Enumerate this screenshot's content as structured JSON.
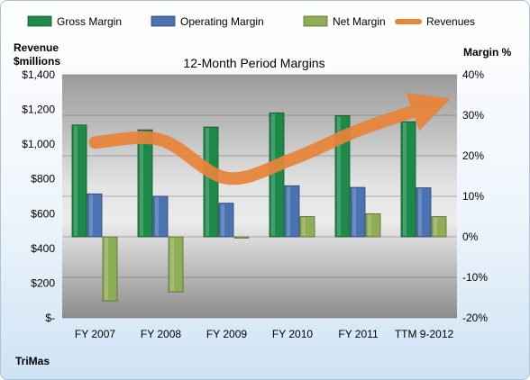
{
  "company": "TriMas",
  "chart_data": {
    "type": "bar",
    "title": "12-Month Period Margins",
    "ylabel_left": [
      "Revenue",
      "$millions"
    ],
    "ylabel_right": "Margin %",
    "categories": [
      "FY 2007",
      "FY 2008",
      "FY 2009",
      "FY 2010",
      "FY 2011",
      "TTM 9-2012"
    ],
    "left_axis": {
      "ylim": [
        0,
        1400
      ],
      "ticks": [
        0,
        200,
        400,
        600,
        800,
        1000,
        1200,
        1400
      ],
      "tick_labels": [
        "$-",
        "$200",
        "$400",
        "$600",
        "$800",
        "$1,000",
        "$1,200",
        "$1,400"
      ]
    },
    "right_axis": {
      "ylim": [
        -20,
        40
      ],
      "ticks": [
        -20,
        -10,
        0,
        10,
        20,
        30,
        40
      ],
      "tick_labels": [
        "-20%",
        "-10%",
        "0%",
        "10%",
        "20%",
        "30%",
        "40%"
      ]
    },
    "series": [
      {
        "name": "Gross Margin",
        "axis": "right",
        "kind": "bar",
        "color": "#1e8a4a",
        "values": [
          27.6,
          26.4,
          27.1,
          30.6,
          29.9,
          28.4
        ]
      },
      {
        "name": "Operating Margin",
        "axis": "right",
        "kind": "bar",
        "color": "#4a73b2",
        "values": [
          10.6,
          10.0,
          8.3,
          12.6,
          12.2,
          12.1
        ]
      },
      {
        "name": "Net Margin",
        "axis": "right",
        "kind": "bar",
        "color": "#8fad54",
        "values": [
          -15.8,
          -13.6,
          -0.3,
          5.0,
          5.7,
          5.0
        ]
      },
      {
        "name": "Revenues",
        "axis": "left",
        "kind": "line",
        "color": "#e8843a",
        "values": [
          1010,
          1025,
          805,
          915,
          1080,
          1210
        ]
      }
    ],
    "grid": true,
    "legend_position": "top"
  }
}
